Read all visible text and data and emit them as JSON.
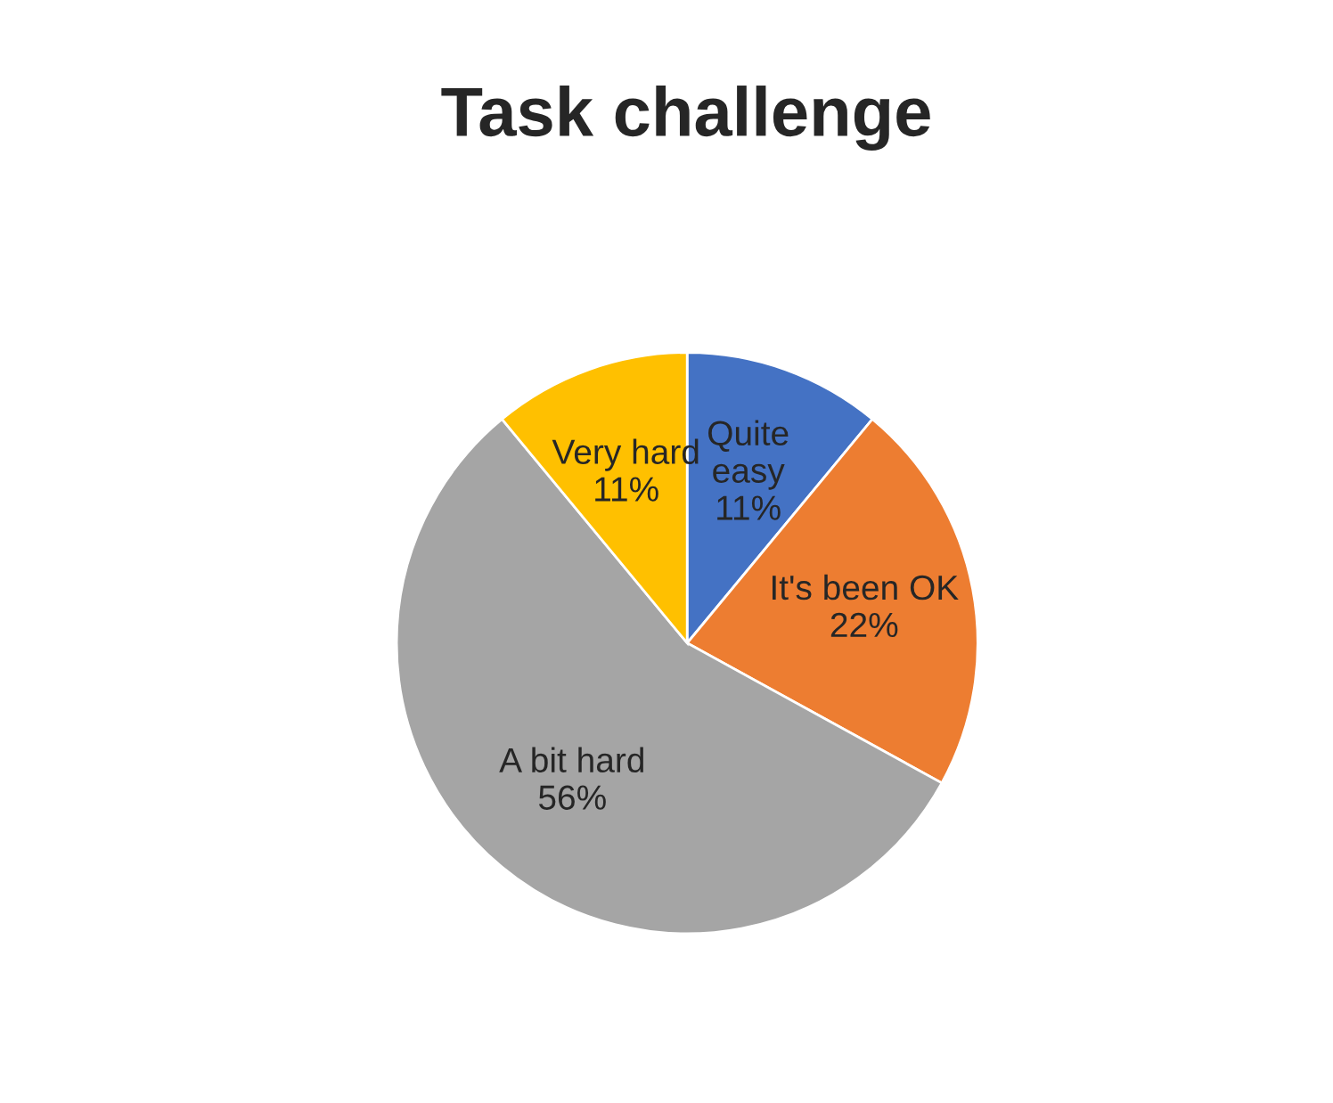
{
  "chart_data": {
    "type": "pie",
    "title": "Task challenge",
    "categories": [
      "Quite\neasy",
      "It's been OK",
      "A bit hard",
      "Very hard"
    ],
    "values": [
      11,
      22,
      56,
      11
    ],
    "colors": [
      "#4472c4",
      "#ed7d31",
      "#a5a5a5",
      "#ffc000"
    ],
    "value_labels": [
      "11%",
      "22%",
      "56%",
      "11%"
    ]
  }
}
